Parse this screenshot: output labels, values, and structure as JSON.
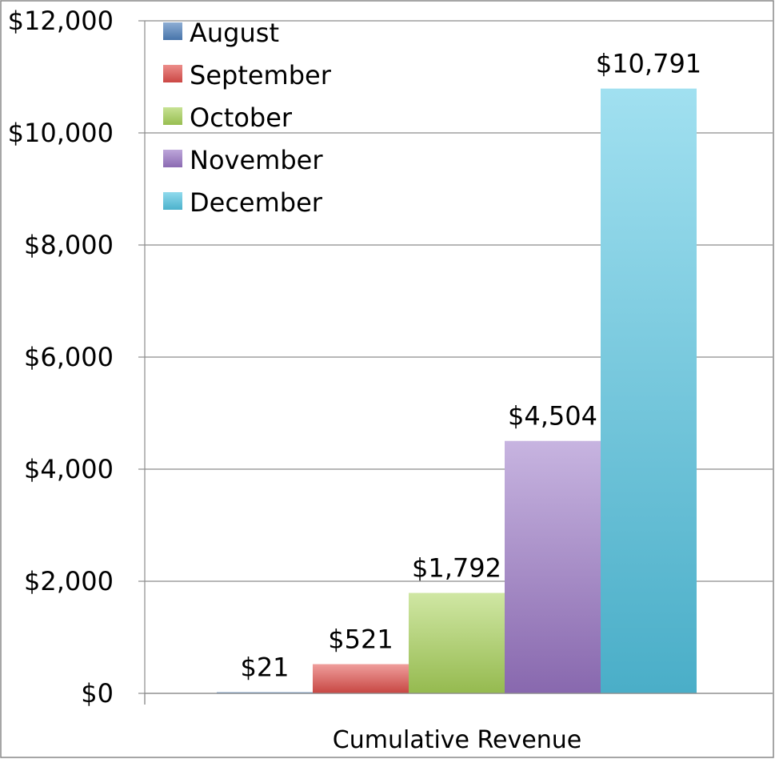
{
  "chart_data": {
    "type": "bar",
    "categories": [
      "Cumulative Revenue"
    ],
    "series": [
      {
        "name": "August",
        "values": [
          21
        ],
        "label": "$21",
        "color": "#4f81bd"
      },
      {
        "name": "September",
        "values": [
          521
        ],
        "label": "$521",
        "color": "#e24f4b"
      },
      {
        "name": "October",
        "values": [
          1792
        ],
        "label": "$1,792",
        "color": "#a9d35a"
      },
      {
        "name": "November",
        "values": [
          4504
        ],
        "label": "$4,504",
        "color": "#9a76c6"
      },
      {
        "name": "December",
        "values": [
          10791
        ],
        "label": "$10,791",
        "color": "#54c6e3"
      }
    ],
    "y_ticks": [
      {
        "value": 0,
        "label": "$0"
      },
      {
        "value": 2000,
        "label": "$2,000"
      },
      {
        "value": 4000,
        "label": "$4,000"
      },
      {
        "value": 6000,
        "label": "$6,000"
      },
      {
        "value": 8000,
        "label": "$8,000"
      },
      {
        "value": 10000,
        "label": "$10,000"
      },
      {
        "value": 12000,
        "label": "$12,000"
      }
    ],
    "ylim": [
      0,
      12000
    ],
    "grid": true,
    "legend_position": "top-left",
    "title": "",
    "xlabel": "",
    "ylabel": ""
  }
}
